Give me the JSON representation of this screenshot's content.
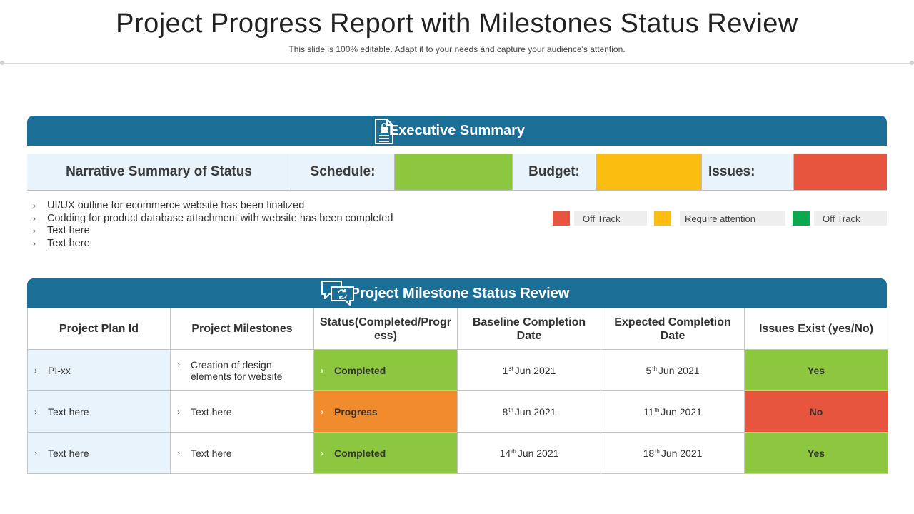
{
  "header": {
    "title": "Project Progress Report with Milestones Status Review",
    "subtitle": "This slide is 100% editable. Adapt it to your needs and capture your audience's attention."
  },
  "executive_summary": {
    "title": "Executive Summary",
    "narrative_label": "Narrative Summary of Status",
    "schedule_label": "Schedule:",
    "budget_label": "Budget:",
    "issues_label": "Issues:",
    "colors": {
      "schedule": "#8dc63f",
      "budget": "#fbbd10",
      "issues": "#e8553f"
    },
    "bullets": [
      "UI/UX  outline for ecommerce website has been finalized",
      "Codding for product database attachment with website has been completed",
      "Text here",
      "Text here"
    ],
    "legend": [
      {
        "label": "Off Track",
        "color": "#e8553f"
      },
      {
        "label": "Require  attention",
        "color": "#fbbd10"
      },
      {
        "label": "Off Track",
        "color": "#0aa84f"
      }
    ]
  },
  "milestones": {
    "title": "Project Milestone  Status Review",
    "headers": [
      "Project Plan Id",
      "Project Milestones",
      "Status(Completed/Progress)",
      "Baseline Completion Date",
      "Expected Completion Date",
      "Issues Exist (yes/No)"
    ],
    "rows": [
      {
        "id": "PI-xx",
        "milestone": "Creation of design elements for website",
        "status": "Completed",
        "baseline_day": "1",
        "baseline_sfx": "st",
        "baseline_rest": "Jun 2021",
        "expected_day": "5",
        "expected_sfx": "th",
        "expected_rest": "Jun 2021",
        "issues": "Yes"
      },
      {
        "id": "Text here",
        "milestone": "Text here",
        "status": "Progress",
        "baseline_day": "8",
        "baseline_sfx": "th",
        "baseline_rest": "Jun 2021",
        "expected_day": "11",
        "expected_sfx": "th",
        "expected_rest": "Jun 2021",
        "issues": "No"
      },
      {
        "id": "Text here",
        "milestone": "Text here",
        "status": "Completed",
        "baseline_day": "14",
        "baseline_sfx": "th",
        "baseline_rest": "Jun 2021",
        "expected_day": "18",
        "expected_sfx": "th",
        "expected_rest": "Jun 2021",
        "issues": "Yes"
      }
    ]
  }
}
